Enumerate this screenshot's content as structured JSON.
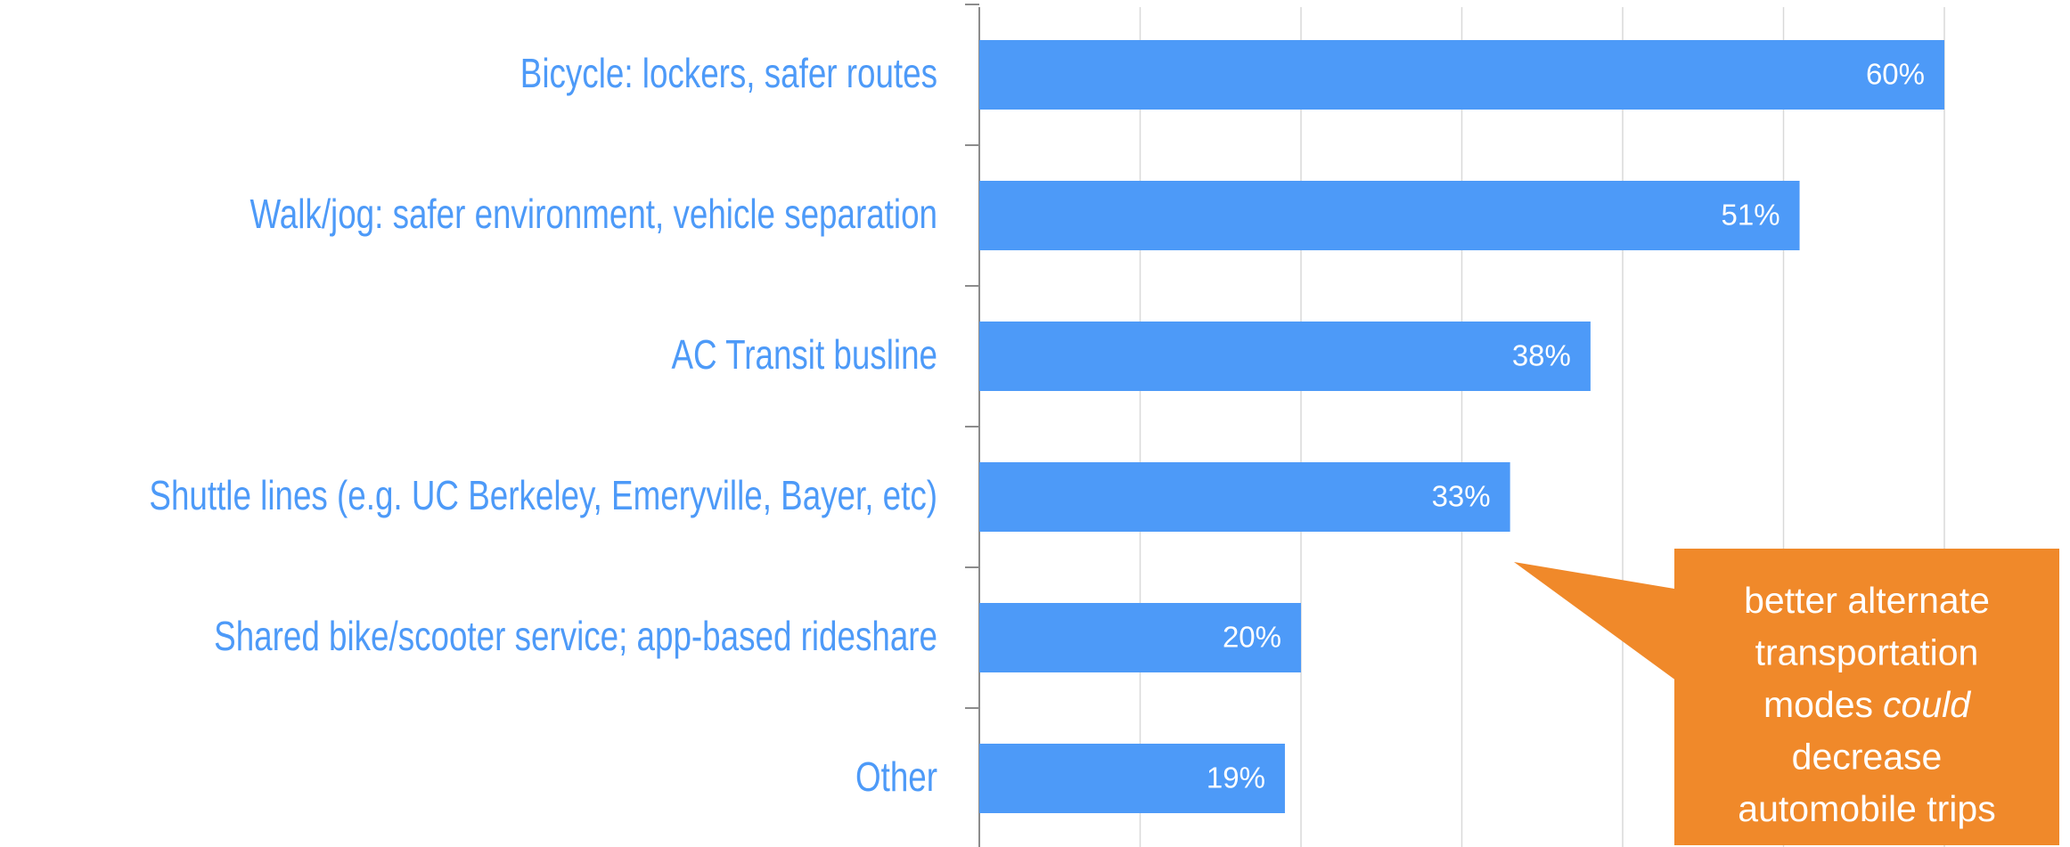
{
  "chart_data": {
    "type": "bar",
    "orientation": "horizontal",
    "categories": [
      "Bicycle: lockers, safer routes",
      "Walk/jog: safer environment, vehicle separation",
      "AC Transit busline",
      "Shuttle lines (e.g. UC Berkeley, Emeryville, Bayer, etc)",
      "Shared bike/scooter service; app-based rideshare",
      "Other"
    ],
    "values": [
      60,
      51,
      38,
      33,
      20,
      19
    ],
    "value_labels": [
      "60%",
      "51%",
      "38%",
      "33%",
      "20%",
      "19%"
    ],
    "color": "#4d9af8",
    "xlim": [
      0,
      60
    ],
    "xticks": [
      0,
      10,
      20,
      30,
      40,
      50,
      60
    ],
    "grid": true,
    "annotation": {
      "lines": [
        "better alternate",
        "transportation",
        {
          "text": "modes",
          "emphasis": "could"
        },
        "decrease",
        "automobile trips"
      ],
      "color": "#f0892a"
    }
  }
}
